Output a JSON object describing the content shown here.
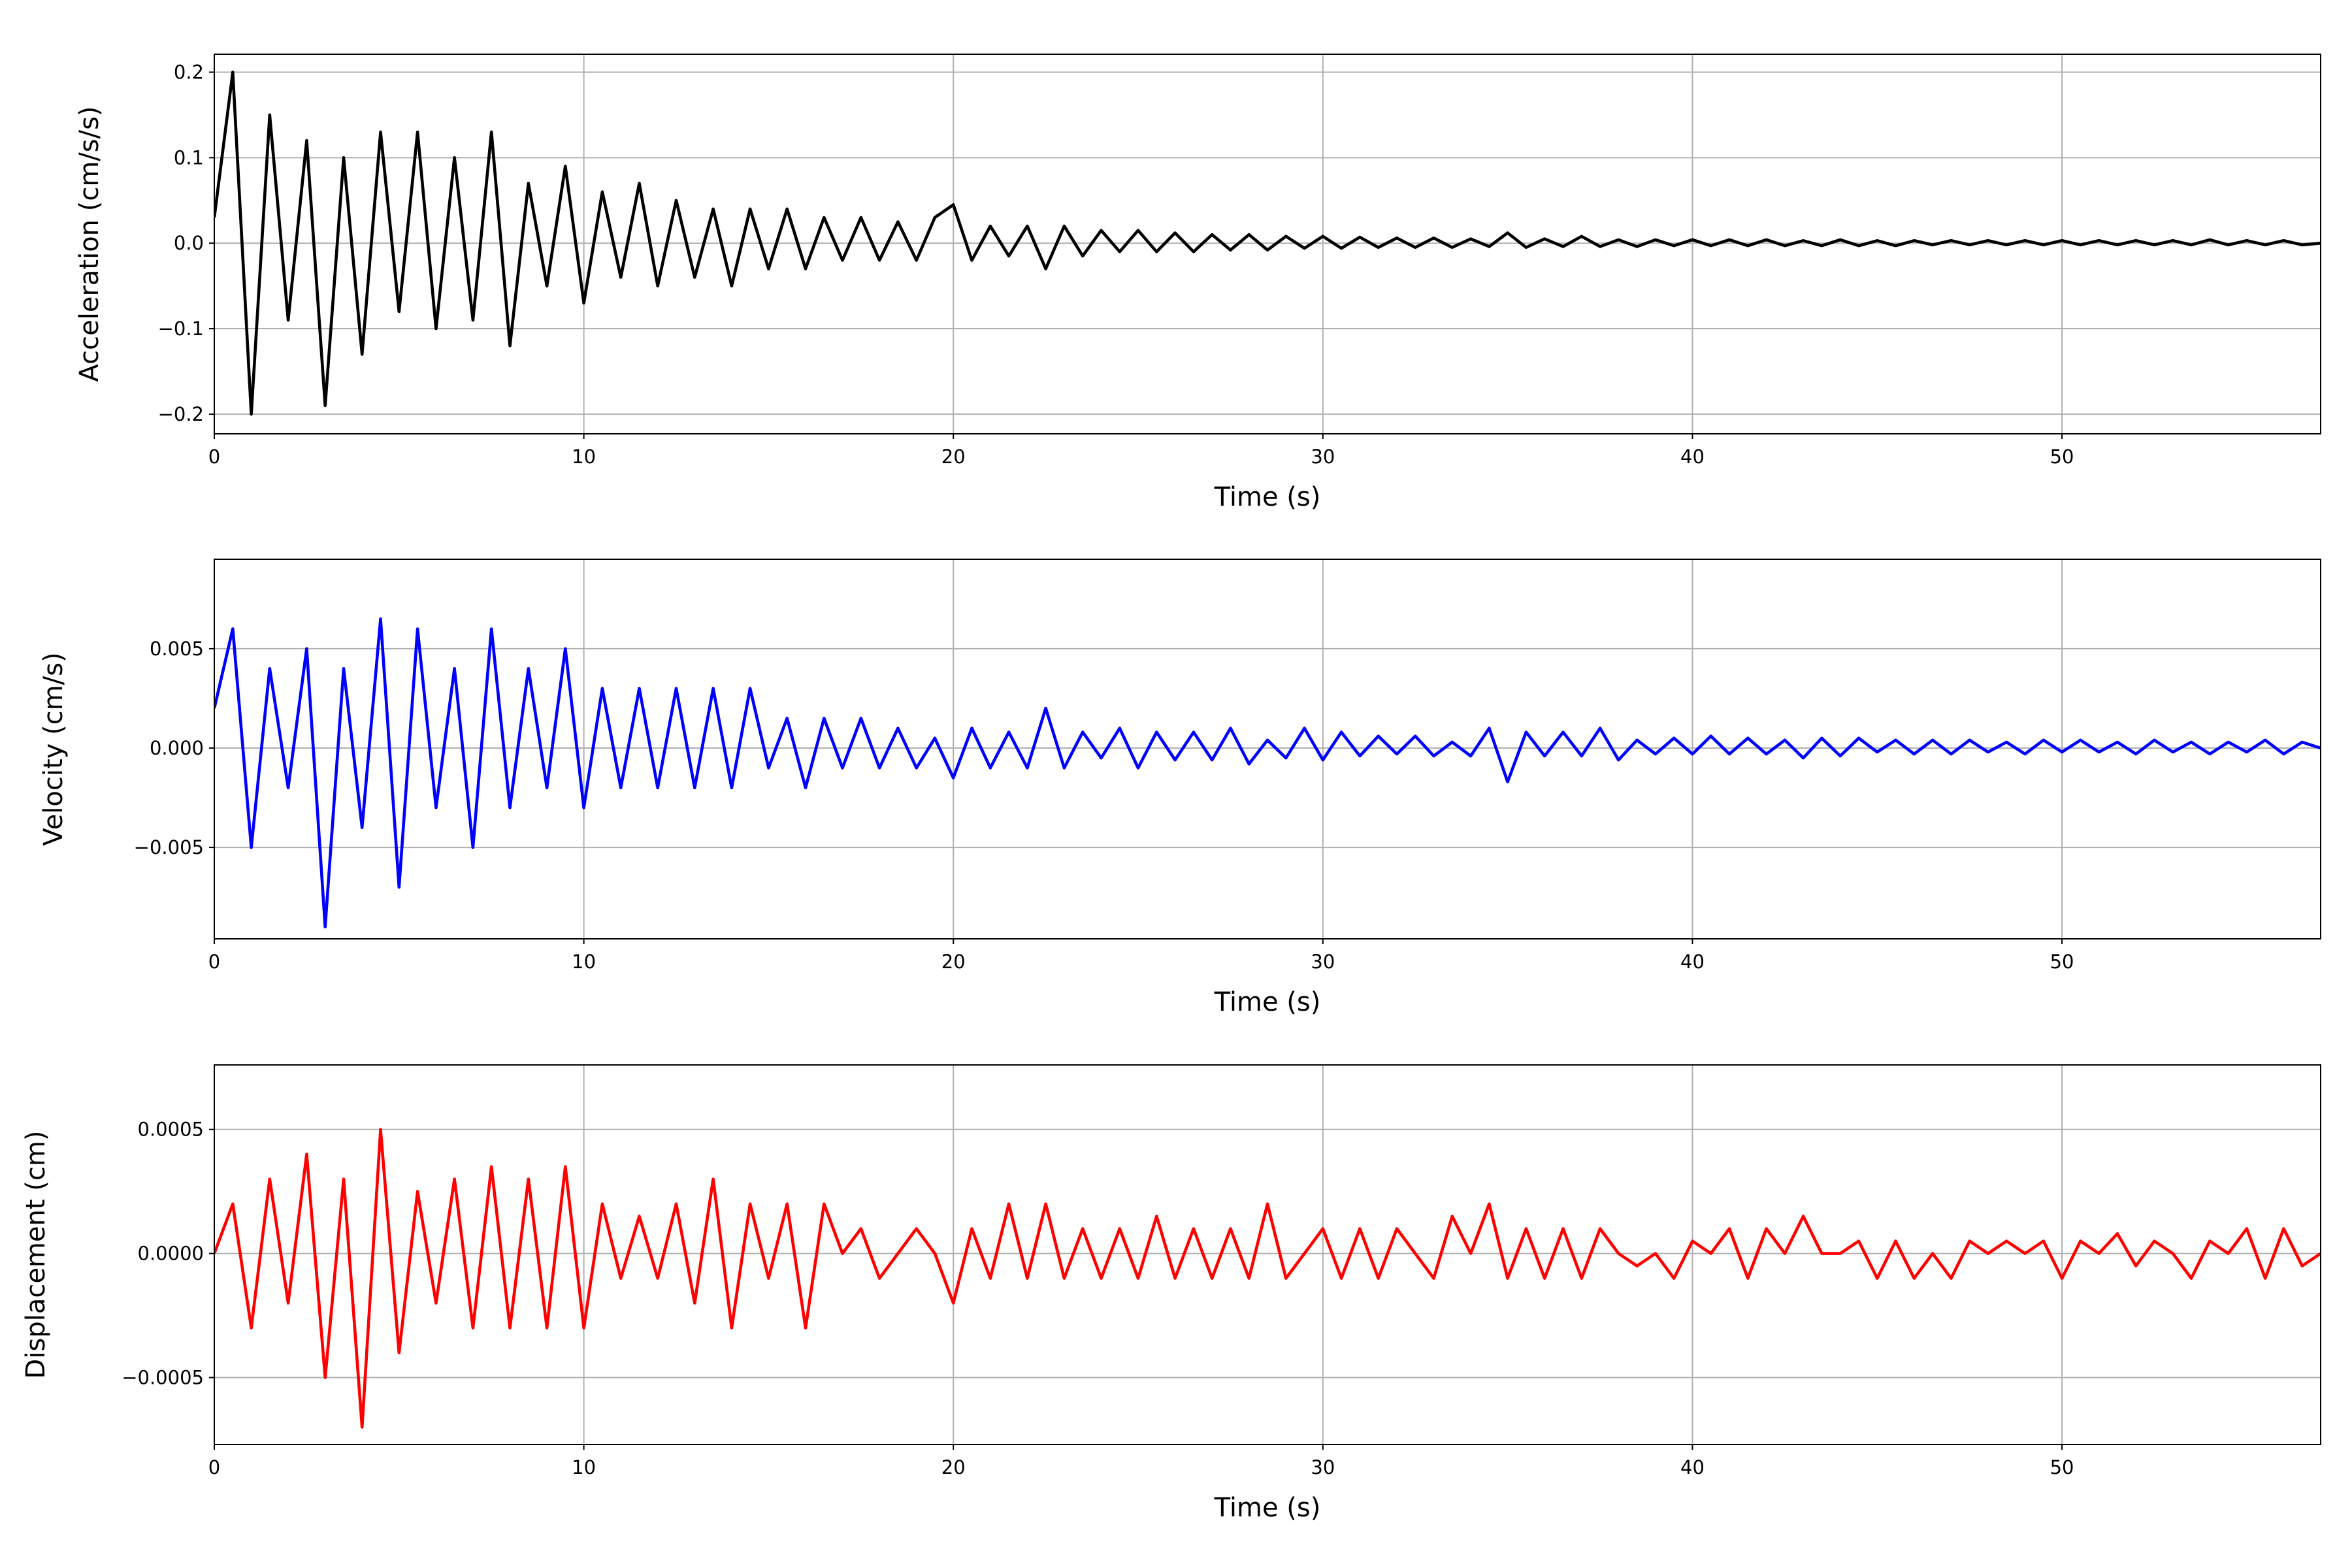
{
  "chart_data": [
    {
      "type": "line",
      "ylabel": "Acceleration (cm/s/s)",
      "xlabel": "Time (s)",
      "color": "#000000",
      "grid": true,
      "xlim": [
        0,
        57
      ],
      "xticks": [
        0,
        10,
        20,
        30,
        40,
        50
      ],
      "ylim": [
        -0.223,
        0.221
      ],
      "yticks": [
        {
          "value": -0.2,
          "label": "−0.2"
        },
        {
          "value": -0.1,
          "label": "−0.1"
        },
        {
          "value": 0,
          "label": "0.0"
        },
        0.1,
        0.2
      ],
      "x": [
        0,
        0.5,
        1,
        1.5,
        2,
        2.5,
        3,
        3.5,
        4,
        4.5,
        5,
        5.5,
        6,
        6.5,
        7,
        7.5,
        8,
        8.5,
        9,
        9.5,
        10,
        10.5,
        11,
        11.5,
        12,
        12.5,
        13,
        13.5,
        14,
        14.5,
        15,
        15.5,
        16,
        16.5,
        17,
        17.5,
        18,
        18.5,
        19,
        19.5,
        20,
        20.5,
        21,
        21.5,
        22,
        22.5,
        23,
        23.5,
        24,
        24.5,
        25,
        25.5,
        26,
        26.5,
        27,
        27.5,
        28,
        28.5,
        29,
        29.5,
        30,
        30.5,
        31,
        31.5,
        32,
        32.5,
        33,
        33.5,
        34,
        34.5,
        35,
        35.5,
        36,
        36.5,
        37,
        37.5,
        38,
        38.5,
        39,
        39.5,
        40,
        40.5,
        41,
        41.5,
        42,
        42.5,
        43,
        43.5,
        44,
        44.5,
        45,
        45.5,
        46,
        46.5,
        47,
        47.5,
        48,
        48.5,
        49,
        49.5,
        50,
        50.5,
        51,
        51.5,
        52,
        52.5,
        53,
        53.5,
        54,
        54.5,
        55,
        55.5,
        56,
        56.5,
        57
      ],
      "values": [
        0.03,
        0.2,
        -0.2,
        0.15,
        -0.09,
        0.12,
        -0.19,
        0.1,
        -0.13,
        0.13,
        -0.08,
        0.13,
        -0.1,
        0.1,
        -0.09,
        0.13,
        -0.12,
        0.07,
        -0.05,
        0.09,
        -0.07,
        0.06,
        -0.04,
        0.07,
        -0.05,
        0.05,
        -0.04,
        0.04,
        -0.05,
        0.04,
        -0.03,
        0.04,
        -0.03,
        0.03,
        -0.02,
        0.03,
        -0.02,
        0.025,
        -0.02,
        0.03,
        0.045,
        -0.02,
        0.02,
        -0.015,
        0.02,
        -0.03,
        0.02,
        -0.015,
        0.015,
        -0.01,
        0.015,
        -0.01,
        0.012,
        -0.01,
        0.01,
        -0.008,
        0.01,
        -0.008,
        0.008,
        -0.006,
        0.008,
        -0.006,
        0.007,
        -0.005,
        0.006,
        -0.005,
        0.006,
        -0.005,
        0.005,
        -0.004,
        0.012,
        -0.005,
        0.005,
        -0.004,
        0.008,
        -0.004,
        0.004,
        -0.004,
        0.004,
        -0.003,
        0.004,
        -0.003,
        0.004,
        -0.003,
        0.004,
        -0.003,
        0.003,
        -0.003,
        0.004,
        -0.003,
        0.003,
        -0.003,
        0.003,
        -0.002,
        0.003,
        -0.002,
        0.003,
        -0.002,
        0.003,
        -0.002,
        0.003,
        -0.002,
        0.003,
        -0.002,
        0.003,
        -0.002,
        0.003,
        -0.002,
        0.004,
        -0.002,
        0.003,
        -0.002,
        0.003,
        -0.002,
        0.0
      ]
    },
    {
      "type": "line",
      "ylabel": "Velocity (cm/s)",
      "xlabel": "Time (s)",
      "color": "#0000ff",
      "grid": true,
      "xlim": [
        0,
        57
      ],
      "xticks": [
        0,
        10,
        20,
        30,
        40,
        50
      ],
      "ylim": [
        -0.0096,
        0.0095
      ],
      "yticks": [
        {
          "value": -0.005,
          "label": "−0.005"
        },
        {
          "value": 0,
          "label": "0.000"
        },
        0.005
      ],
      "x": [
        0,
        0.5,
        1,
        1.5,
        2,
        2.5,
        3,
        3.5,
        4,
        4.5,
        5,
        5.5,
        6,
        6.5,
        7,
        7.5,
        8,
        8.5,
        9,
        9.5,
        10,
        10.5,
        11,
        11.5,
        12,
        12.5,
        13,
        13.5,
        14,
        14.5,
        15,
        15.5,
        16,
        16.5,
        17,
        17.5,
        18,
        18.5,
        19,
        19.5,
        20,
        20.5,
        21,
        21.5,
        22,
        22.5,
        23,
        23.5,
        24,
        24.5,
        25,
        25.5,
        26,
        26.5,
        27,
        27.5,
        28,
        28.5,
        29,
        29.5,
        30,
        30.5,
        31,
        31.5,
        32,
        32.5,
        33,
        33.5,
        34,
        34.5,
        35,
        35.5,
        36,
        36.5,
        37,
        37.5,
        38,
        38.5,
        39,
        39.5,
        40,
        40.5,
        41,
        41.5,
        42,
        42.5,
        43,
        43.5,
        44,
        44.5,
        45,
        45.5,
        46,
        46.5,
        47,
        47.5,
        48,
        48.5,
        49,
        49.5,
        50,
        50.5,
        51,
        51.5,
        52,
        52.5,
        53,
        53.5,
        54,
        54.5,
        55,
        55.5,
        56,
        56.5,
        57
      ],
      "values": [
        0.002,
        0.006,
        -0.005,
        0.004,
        -0.002,
        0.005,
        -0.009,
        0.004,
        -0.004,
        0.0065,
        -0.007,
        0.006,
        -0.003,
        0.004,
        -0.005,
        0.006,
        -0.003,
        0.004,
        -0.002,
        0.005,
        -0.003,
        0.003,
        -0.002,
        0.003,
        -0.002,
        0.003,
        -0.002,
        0.003,
        -0.002,
        0.003,
        -0.001,
        0.0015,
        -0.002,
        0.0015,
        -0.001,
        0.0015,
        -0.001,
        0.001,
        -0.001,
        0.0005,
        -0.0015,
        0.001,
        -0.001,
        0.0008,
        -0.001,
        0.002,
        -0.001,
        0.0008,
        -0.0005,
        0.001,
        -0.001,
        0.0008,
        -0.0006,
        0.0008,
        -0.0006,
        0.001,
        -0.0008,
        0.0004,
        -0.0005,
        0.001,
        -0.0006,
        0.0008,
        -0.0004,
        0.0006,
        -0.0003,
        0.0006,
        -0.0004,
        0.0003,
        -0.0004,
        0.001,
        -0.0017,
        0.0008,
        -0.0004,
        0.0008,
        -0.0004,
        0.001,
        -0.0006,
        0.0004,
        -0.0003,
        0.0005,
        -0.0003,
        0.0006,
        -0.0003,
        0.0005,
        -0.0003,
        0.0004,
        -0.0005,
        0.0005,
        -0.0004,
        0.0005,
        -0.0002,
        0.0004,
        -0.0003,
        0.0004,
        -0.0003,
        0.0004,
        -0.0002,
        0.0003,
        -0.0003,
        0.0004,
        -0.0002,
        0.0004,
        -0.0002,
        0.0003,
        -0.0003,
        0.0004,
        -0.0002,
        0.0003,
        -0.0003,
        0.0003,
        -0.0002,
        0.0004,
        -0.0003,
        0.0003,
        0.0
      ]
    },
    {
      "type": "line",
      "ylabel": "Displacement (cm)",
      "xlabel": "Time (s)",
      "color": "#ff0000",
      "grid": true,
      "xlim": [
        0,
        57
      ],
      "xticks": [
        0,
        10,
        20,
        30,
        40,
        50
      ],
      "ylim": [
        -0.00077,
        0.00076
      ],
      "yticks": [
        {
          "value": -0.0005,
          "label": "−0.0005"
        },
        {
          "value": 0,
          "label": "0.0000"
        },
        0.0005
      ],
      "x": [
        0,
        0.5,
        1,
        1.5,
        2,
        2.5,
        3,
        3.5,
        4,
        4.5,
        5,
        5.5,
        6,
        6.5,
        7,
        7.5,
        8,
        8.5,
        9,
        9.5,
        10,
        10.5,
        11,
        11.5,
        12,
        12.5,
        13,
        13.5,
        14,
        14.5,
        15,
        15.5,
        16,
        16.5,
        17,
        17.5,
        18,
        18.5,
        19,
        19.5,
        20,
        20.5,
        21,
        21.5,
        22,
        22.5,
        23,
        23.5,
        24,
        24.5,
        25,
        25.5,
        26,
        26.5,
        27,
        27.5,
        28,
        28.5,
        29,
        29.5,
        30,
        30.5,
        31,
        31.5,
        32,
        32.5,
        33,
        33.5,
        34,
        34.5,
        35,
        35.5,
        36,
        36.5,
        37,
        37.5,
        38,
        38.5,
        39,
        39.5,
        40,
        40.5,
        41,
        41.5,
        42,
        42.5,
        43,
        43.5,
        44,
        44.5,
        45,
        45.5,
        46,
        46.5,
        47,
        47.5,
        48,
        48.5,
        49,
        49.5,
        50,
        50.5,
        51,
        51.5,
        52,
        52.5,
        53,
        53.5,
        54,
        54.5,
        55,
        55.5,
        56,
        56.5,
        57
      ],
      "values": [
        0.0,
        0.0002,
        -0.0003,
        0.0003,
        -0.0002,
        0.0004,
        -0.0005,
        0.0003,
        -0.0007,
        0.0005,
        -0.0004,
        0.00025,
        -0.0002,
        0.0003,
        -0.0003,
        0.00035,
        -0.0003,
        0.0003,
        -0.0003,
        0.00035,
        -0.0003,
        0.0002,
        -0.0001,
        0.00015,
        -0.0001,
        0.0002,
        -0.0002,
        0.0003,
        -0.0003,
        0.0002,
        -0.0001,
        0.0002,
        -0.0003,
        0.0002,
        0.0,
        0.0001,
        -0.0001,
        0.0,
        0.0001,
        0.0,
        -0.0002,
        0.0001,
        -0.0001,
        0.0002,
        -0.0001,
        0.0002,
        -0.0001,
        0.0001,
        -0.0001,
        0.0001,
        -0.0001,
        0.00015,
        -0.0001,
        0.0001,
        -0.0001,
        0.0001,
        -0.0001,
        0.0002,
        -0.0001,
        0.0,
        0.0001,
        -0.0001,
        0.0001,
        -0.0001,
        0.0001,
        0.0,
        -0.0001,
        0.00015,
        0.0,
        0.0002,
        -0.0001,
        0.0001,
        -0.0001,
        0.0001,
        -0.0001,
        0.0001,
        0.0,
        -5e-05,
        0.0,
        -0.0001,
        5e-05,
        0.0,
        0.0001,
        -0.0001,
        0.0001,
        0.0,
        0.00015,
        0.0,
        0.0,
        5e-05,
        -0.0001,
        5e-05,
        -0.0001,
        0.0,
        -0.0001,
        5e-05,
        0.0,
        5e-05,
        0.0,
        5e-05,
        -0.0001,
        5e-05,
        0.0,
        8e-05,
        -5e-05,
        5e-05,
        0.0,
        -0.0001,
        5e-05,
        0.0,
        0.0001,
        -0.0001,
        0.0001,
        -5e-05,
        0.0
      ]
    }
  ]
}
